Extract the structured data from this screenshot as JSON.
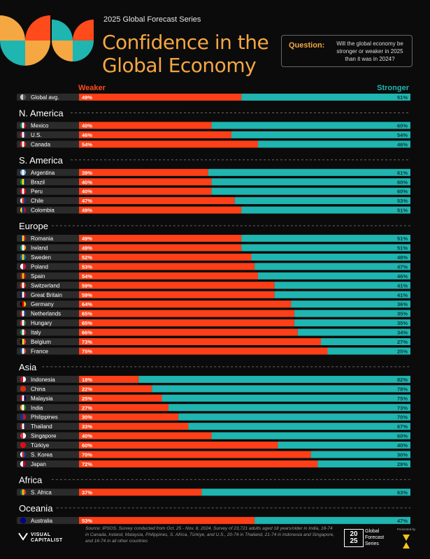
{
  "header": {
    "series": "2025 Global Forecast Series",
    "title_line1": "Confidence in the",
    "title_line2": "Global Economy",
    "question_label": "Question:",
    "question_text": "Will the global economy be stronger or weaker in 2025 than it was in 2024?"
  },
  "colors": {
    "weaker": "#ff3f17",
    "stronger": "#1fb5b0",
    "accent": "#f5a742",
    "row_bg": "#2b2b2b"
  },
  "chart_data": {
    "type": "bar",
    "stacked": true,
    "orientation": "horizontal",
    "legend": [
      "Weaker",
      "Stronger"
    ],
    "xlim": [
      0,
      100
    ],
    "groups": [
      {
        "region": "",
        "rows": [
          {
            "country": "Global avg.",
            "weaker": 49,
            "stronger": 51
          }
        ]
      },
      {
        "region": "N. America",
        "rows": [
          {
            "country": "Mexico",
            "weaker": 40,
            "stronger": 60
          },
          {
            "country": "U.S.",
            "weaker": 46,
            "stronger": 54
          },
          {
            "country": "Canada",
            "weaker": 54,
            "stronger": 46
          }
        ]
      },
      {
        "region": "S. America",
        "rows": [
          {
            "country": "Argentina",
            "weaker": 39,
            "stronger": 61
          },
          {
            "country": "Brazil",
            "weaker": 40,
            "stronger": 60
          },
          {
            "country": "Peru",
            "weaker": 40,
            "stronger": 60
          },
          {
            "country": "Chile",
            "weaker": 47,
            "stronger": 53
          },
          {
            "country": "Colombia",
            "weaker": 49,
            "stronger": 51
          }
        ]
      },
      {
        "region": "Europe",
        "rows": [
          {
            "country": "Romania",
            "weaker": 49,
            "stronger": 51
          },
          {
            "country": "Ireland",
            "weaker": 49,
            "stronger": 51
          },
          {
            "country": "Sweden",
            "weaker": 52,
            "stronger": 48
          },
          {
            "country": "Poland",
            "weaker": 53,
            "stronger": 47
          },
          {
            "country": "Spain",
            "weaker": 54,
            "stronger": 46
          },
          {
            "country": "Switzerland",
            "weaker": 59,
            "stronger": 41
          },
          {
            "country": "Great Britain",
            "weaker": 59,
            "stronger": 41
          },
          {
            "country": "Germany",
            "weaker": 64,
            "stronger": 36
          },
          {
            "country": "Netherlands",
            "weaker": 65,
            "stronger": 35
          },
          {
            "country": "Hungary",
            "weaker": 65,
            "stronger": 35
          },
          {
            "country": "Italy",
            "weaker": 66,
            "stronger": 34
          },
          {
            "country": "Belgium",
            "weaker": 73,
            "stronger": 27
          },
          {
            "country": "France",
            "weaker": 75,
            "stronger": 25
          }
        ]
      },
      {
        "region": "Asia",
        "rows": [
          {
            "country": "Indonesia",
            "weaker": 18,
            "stronger": 82
          },
          {
            "country": "China",
            "weaker": 22,
            "stronger": 78
          },
          {
            "country": "Malaysia",
            "weaker": 25,
            "stronger": 75
          },
          {
            "country": "India",
            "weaker": 27,
            "stronger": 73
          },
          {
            "country": "Philippines",
            "weaker": 30,
            "stronger": 70
          },
          {
            "country": "Thailand",
            "weaker": 33,
            "stronger": 67
          },
          {
            "country": "Singapore",
            "weaker": 40,
            "stronger": 60
          },
          {
            "country": "Türkiye",
            "weaker": 60,
            "stronger": 40
          },
          {
            "country": "S. Korea",
            "weaker": 70,
            "stronger": 30
          },
          {
            "country": "Japan",
            "weaker": 72,
            "stronger": 28
          }
        ]
      },
      {
        "region": "Africa",
        "rows": [
          {
            "country": "S. Africa",
            "weaker": 37,
            "stronger": 63
          }
        ]
      },
      {
        "region": "Oceania",
        "rows": [
          {
            "country": "Australia",
            "weaker": 53,
            "stronger": 47
          }
        ]
      }
    ]
  },
  "flag_colors": {
    "Global avg.": [
      "#cccccc",
      "#555555"
    ],
    "Mexico": [
      "#1a8f4a",
      "#ffffff",
      "#c8102e"
    ],
    "U.S.": [
      "#b22234",
      "#ffffff",
      "#3c3b6e"
    ],
    "Canada": [
      "#d52b1e",
      "#ffffff",
      "#d52b1e"
    ],
    "Argentina": [
      "#74acdf",
      "#ffffff",
      "#74acdf"
    ],
    "Brazil": [
      "#009c3b",
      "#ffdf00",
      "#002776"
    ],
    "Peru": [
      "#d91023",
      "#ffffff",
      "#d91023"
    ],
    "Chile": [
      "#ffffff",
      "#d52b1e",
      "#0039a6"
    ],
    "Colombia": [
      "#fcd116",
      "#003893",
      "#ce1126"
    ],
    "Romania": [
      "#002b7f",
      "#fcd116",
      "#ce1126"
    ],
    "Ireland": [
      "#169b62",
      "#ffffff",
      "#ff883e"
    ],
    "Sweden": [
      "#006aa7",
      "#fecc00",
      "#006aa7"
    ],
    "Poland": [
      "#ffffff",
      "#dc143c"
    ],
    "Spain": [
      "#aa151b",
      "#f1bf00",
      "#aa151b"
    ],
    "Switzerland": [
      "#d52b1e",
      "#ffffff",
      "#d52b1e"
    ],
    "Great Britain": [
      "#012169",
      "#ffffff",
      "#c8102e"
    ],
    "Germany": [
      "#000000",
      "#dd0000",
      "#ffce00"
    ],
    "Netherlands": [
      "#ae1c28",
      "#ffffff",
      "#21468b"
    ],
    "Hungary": [
      "#ce2939",
      "#ffffff",
      "#477050"
    ],
    "Italy": [
      "#009246",
      "#ffffff",
      "#ce2b37"
    ],
    "Belgium": [
      "#000000",
      "#fdda24",
      "#ef3340"
    ],
    "France": [
      "#0055a4",
      "#ffffff",
      "#ef4135"
    ],
    "Indonesia": [
      "#ce1126",
      "#ffffff"
    ],
    "China": [
      "#de2910",
      "#de2910"
    ],
    "Malaysia": [
      "#cc0001",
      "#ffffff",
      "#010066"
    ],
    "India": [
      "#ff9933",
      "#ffffff",
      "#138808"
    ],
    "Philippines": [
      "#0038a8",
      "#ce1126"
    ],
    "Thailand": [
      "#a51931",
      "#ffffff",
      "#2d2a4a"
    ],
    "Singapore": [
      "#ef3340",
      "#ffffff"
    ],
    "Türkiye": [
      "#e30a17",
      "#e30a17"
    ],
    "S. Korea": [
      "#ffffff",
      "#cd2e3a",
      "#0047a0"
    ],
    "Japan": [
      "#ffffff",
      "#bc002d"
    ],
    "S. Africa": [
      "#007a4d",
      "#ffb612",
      "#de3831"
    ],
    "Australia": [
      "#00008b",
      "#00008b"
    ]
  },
  "footer": {
    "source": "Source: IPSOS. Survey conducted from Oct. 25 - Nov. 8, 2024. Survey of 23,721 adults aged 18 years/older in India, 18-74 in Canada, Ireland, Malaysia, Philippines, S. Africa, Türkiye, and U.S., 20-74 in Thailand, 21-74 in Indonesia and Singapore, and 16-74 in all other countries",
    "logo_line1": "VISUAL",
    "logo_line2": "CAPITALIST",
    "badge_year_top": "20",
    "badge_year_bottom": "25",
    "badge_text": "Global Forecast Series",
    "presented_by": "Presented by"
  }
}
